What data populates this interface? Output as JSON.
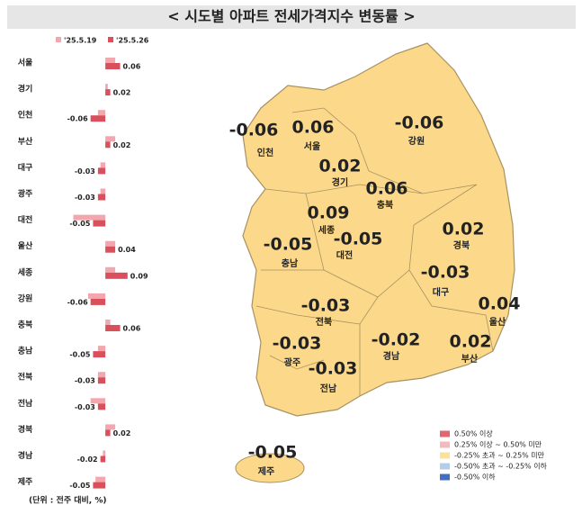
{
  "title": "< 시도별 아파트 전세가격지수 변동률 >",
  "unit_note": "(단위 : 전주 대비, %)",
  "chart_data": {
    "type": "hbar",
    "categories": [
      "서울",
      "경기",
      "인천",
      "부산",
      "대구",
      "광주",
      "대전",
      "울산",
      "세종",
      "강원",
      "충북",
      "충남",
      "전북",
      "전남",
      "경북",
      "경남",
      "제주"
    ],
    "series": [
      {
        "name": "'25.5.19",
        "color": "#f4a6ae",
        "values": [
          0.04,
          0.01,
          -0.03,
          0.04,
          -0.02,
          -0.02,
          -0.13,
          0.04,
          0.04,
          -0.07,
          0.02,
          -0.03,
          -0.03,
          -0.06,
          0.04,
          -0.01,
          -0.04
        ]
      },
      {
        "name": "'25.5.26",
        "color": "#d9505c",
        "values": [
          0.06,
          0.02,
          -0.06,
          0.02,
          -0.03,
          -0.03,
          -0.05,
          0.04,
          0.09,
          -0.06,
          0.06,
          -0.05,
          -0.03,
          -0.03,
          0.02,
          -0.02,
          -0.05
        ]
      }
    ],
    "xlim": [
      -0.15,
      0.12
    ]
  },
  "legend": [
    {
      "label": "0.50% 이상",
      "color": "#e06670"
    },
    {
      "label": "0.25% 이상 ~ 0.50% 미만",
      "color": "#f4b8bf"
    },
    {
      "label": "-0.25% 초과 ~ 0.25% 미만",
      "color": "#fbe29a"
    },
    {
      "label": "-0.50% 초과 ~ -0.25% 이하",
      "color": "#b4cde8"
    },
    {
      "label": "-0.50% 이하",
      "color": "#3e6fc0"
    }
  ]
}
